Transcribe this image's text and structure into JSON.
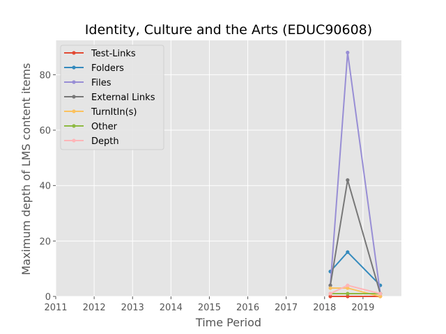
{
  "chart_data": {
    "type": "line",
    "title": "Identity, Culture and the Arts (EDUC90608)",
    "xlabel": "Time Period",
    "ylabel": "Maximum depth of LMS content items",
    "x_ticks": [
      "2011",
      "2012",
      "2013",
      "2014",
      "2015",
      "2016",
      "2017",
      "2018",
      "2019"
    ],
    "y_ticks": [
      "0",
      "20",
      "40",
      "60",
      "80"
    ],
    "xlim": [
      2011,
      2020.0
    ],
    "ylim": [
      0,
      92.4
    ],
    "grid": true,
    "legend_position": "upper-left",
    "x": [
      2018.15,
      2018.6,
      2019.45
    ],
    "series": [
      {
        "name": "Test-Links",
        "color": "#E24A33",
        "values": [
          0,
          0,
          0
        ]
      },
      {
        "name": "Folders",
        "color": "#348ABD",
        "values": [
          9,
          16,
          4
        ]
      },
      {
        "name": "Files",
        "color": "#988ED5",
        "values": [
          4,
          88,
          1
        ]
      },
      {
        "name": "External Links",
        "color": "#777777",
        "values": [
          4,
          42,
          1
        ]
      },
      {
        "name": "TurnItIn(s)",
        "color": "#FBC15E",
        "values": [
          3,
          3,
          0
        ]
      },
      {
        "name": "Other",
        "color": "#8EBA42",
        "values": [
          1,
          1,
          1
        ]
      },
      {
        "name": "Depth",
        "color": "#FFB5B8",
        "values": [
          1,
          4,
          1
        ]
      }
    ]
  }
}
